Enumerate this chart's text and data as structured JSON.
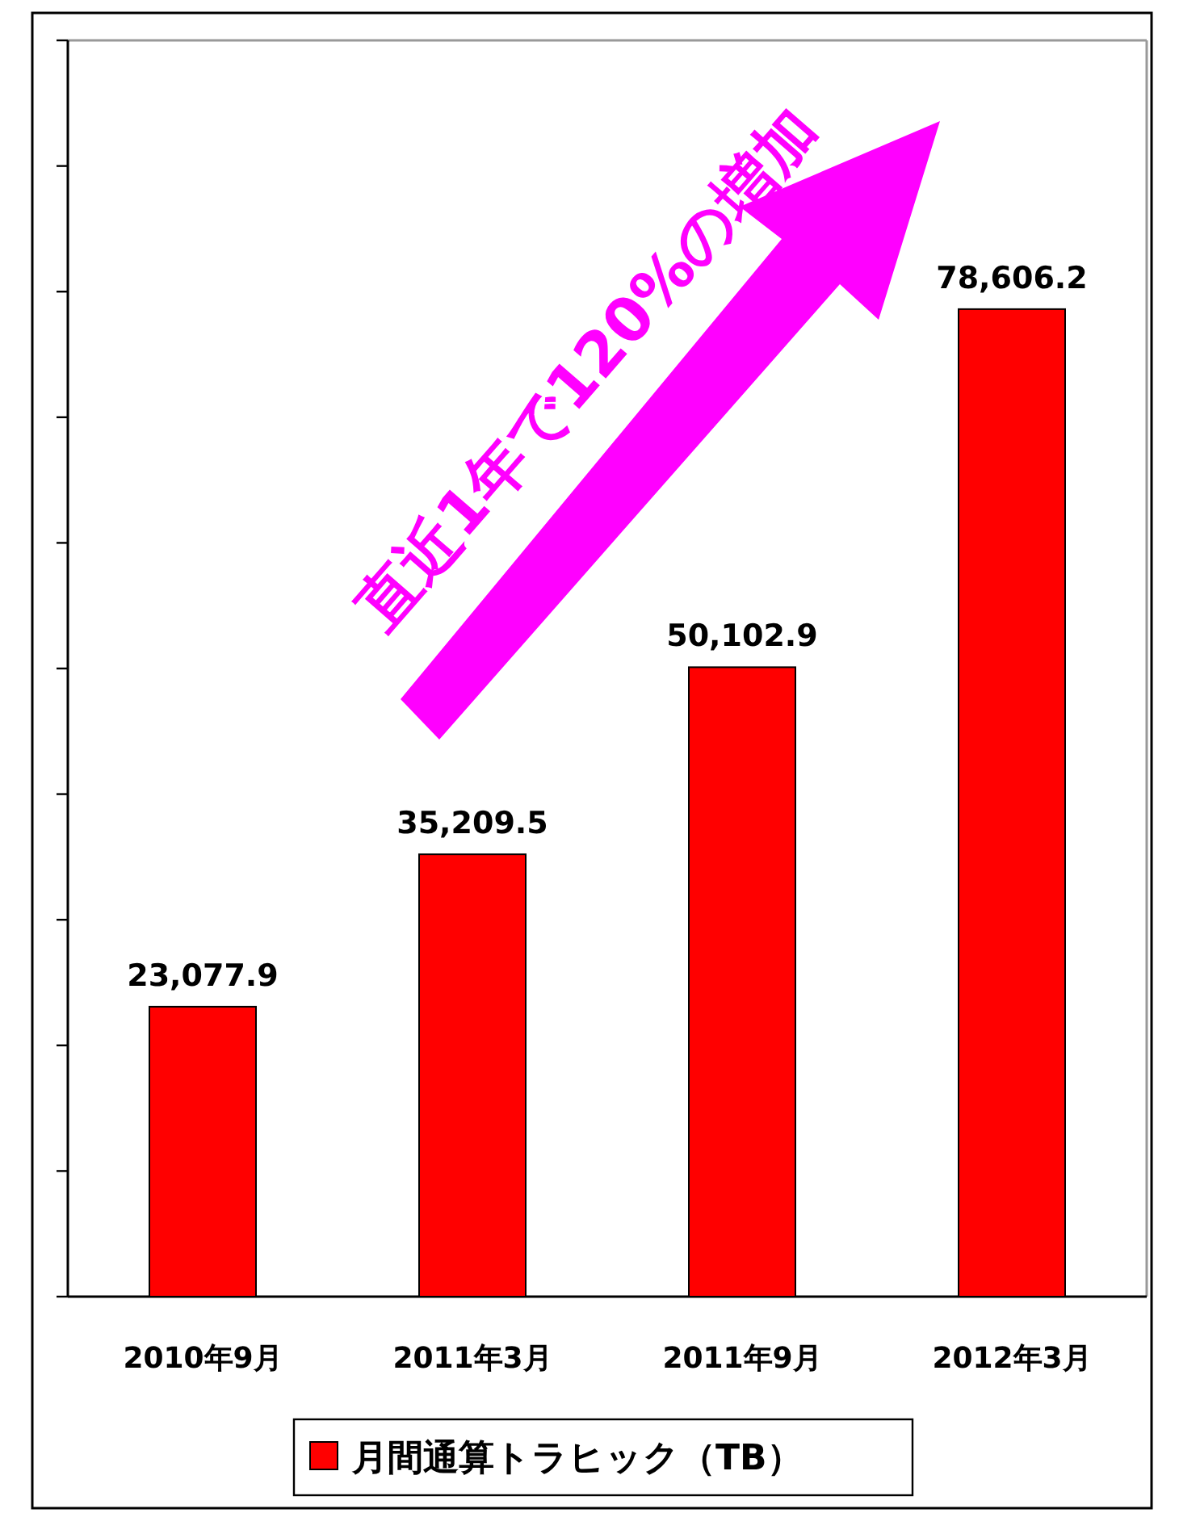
{
  "chart_data": {
    "type": "bar",
    "categories": [
      "2010年9月",
      "2011年3月",
      "2011年9月",
      "2012年3月"
    ],
    "series": [
      {
        "name": "月間通算トラヒック（TB）",
        "color": "#ff0000",
        "values": [
          23077.9,
          35209.5,
          50102.9,
          78606.2
        ],
        "value_labels": [
          "23,077.9",
          "35,209.5",
          "50,102.9",
          "78,606.2"
        ]
      }
    ],
    "ylim": [
      0,
      100000
    ],
    "yticks": [
      {
        "value": 0,
        "label": null
      },
      {
        "value": 10000,
        "label": null
      },
      {
        "value": 20000,
        "label": null
      },
      {
        "value": 30000,
        "label": null
      },
      {
        "value": 40000,
        "label": null
      },
      {
        "value": 50000,
        "label": null
      },
      {
        "value": 60000,
        "label": null
      },
      {
        "value": 70000,
        "label": null
      },
      {
        "value": 80000,
        "label": null
      },
      {
        "value": 90000,
        "label": null
      },
      {
        "value": 100000,
        "label": null
      }
    ],
    "tick_labels": "x",
    "grid": false,
    "legend": "bottom",
    "annotations": [
      "直近1年で120%の増加"
    ]
  }
}
